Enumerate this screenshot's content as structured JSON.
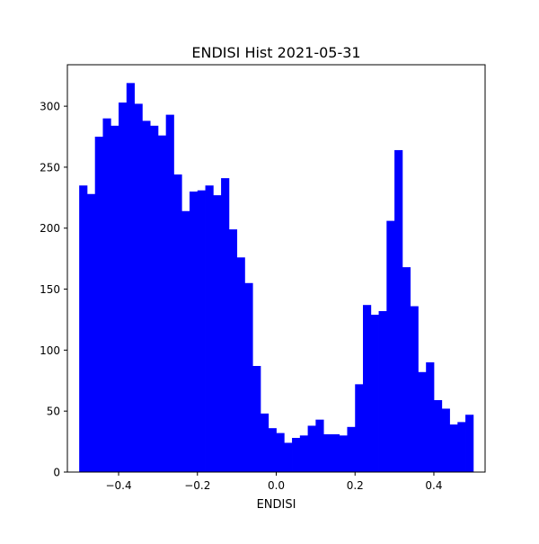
{
  "chart_data": {
    "type": "bar",
    "title": "ENDISI Hist 2021-05-31",
    "xlabel": "ENDISI",
    "ylabel": "",
    "bar_color": "#0000ff",
    "xlim": [
      -0.53,
      0.53
    ],
    "ylim": [
      0,
      334
    ],
    "bin_start": -0.5,
    "bin_end": 0.5,
    "counts": [
      235,
      228,
      275,
      290,
      284,
      303,
      319,
      302,
      288,
      284,
      276,
      293,
      244,
      214,
      230,
      231,
      235,
      227,
      241,
      199,
      176,
      155,
      87,
      48,
      36,
      32,
      24,
      28,
      30,
      38,
      43,
      31,
      31,
      30,
      37,
      72,
      137,
      129,
      132,
      206,
      264,
      168,
      136,
      82,
      90,
      59,
      52,
      39,
      41,
      47
    ],
    "x_ticks": [
      {
        "value": -0.4,
        "label": "−0.4"
      },
      {
        "value": -0.2,
        "label": "−0.2"
      },
      {
        "value": 0.0,
        "label": "0.0"
      },
      {
        "value": 0.2,
        "label": "0.2"
      },
      {
        "value": 0.4,
        "label": "0.4"
      }
    ],
    "y_ticks": [
      {
        "value": 0,
        "label": "0"
      },
      {
        "value": 50,
        "label": "50"
      },
      {
        "value": 100,
        "label": "100"
      },
      {
        "value": 150,
        "label": "150"
      },
      {
        "value": 200,
        "label": "200"
      },
      {
        "value": 250,
        "label": "250"
      },
      {
        "value": 300,
        "label": "300"
      }
    ]
  }
}
